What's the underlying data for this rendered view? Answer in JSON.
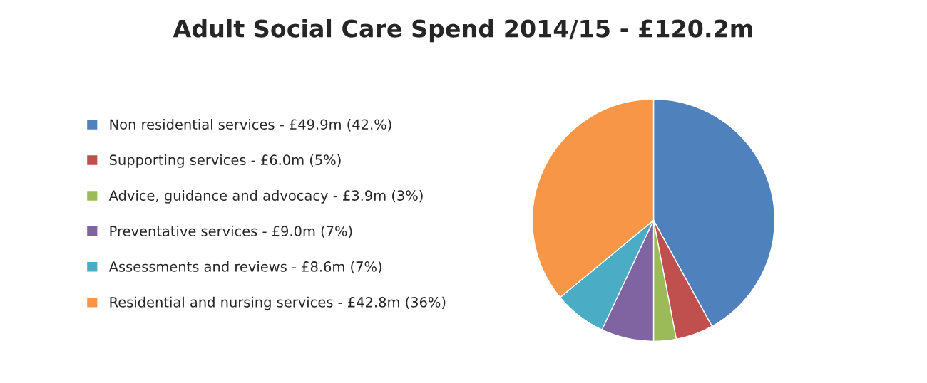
{
  "chart_data": {
    "type": "pie",
    "title": "Adult Social Care Spend 2014/15 - £120.2m",
    "categories": [
      "Non residential services - £49.9m (42.%)",
      "Supporting services - £6.0m (5%)",
      "Advice, guidance and advocacy - £3.9m (3%)",
      "Preventative services - £9.0m (7%)",
      "Assessments and reviews - £8.6m (7%)",
      "Residential and nursing services - £42.8m (36%)"
    ],
    "values": [
      42,
      5,
      3,
      7,
      7,
      36
    ],
    "colors": [
      "#4f81bd",
      "#c0504d",
      "#9bbb59",
      "#8064a2",
      "#4bacc6",
      "#f79646"
    ],
    "legend": "left"
  }
}
